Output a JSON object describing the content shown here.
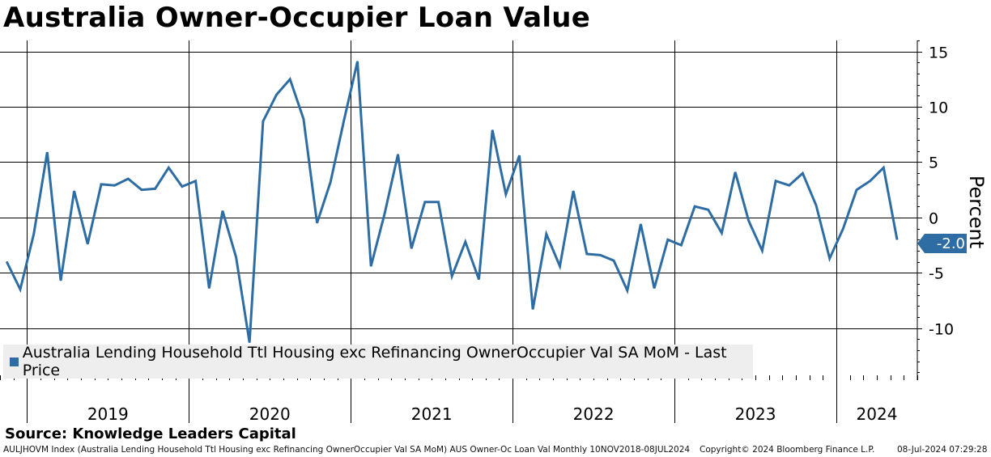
{
  "header": {
    "title": "Australia Owner-Occupier Loan Value"
  },
  "legend": {
    "label": "Australia Lending Household Ttl Housing exc Refinancing OwnerOccupier Val SA MoM - Last Price"
  },
  "source": "Source: Knowledge Leaders Capital",
  "footer": {
    "left": "AULJHOVM Index (Australia Lending Household Ttl Housing exc Refinancing OwnerOccupier Val SA MoM) AUS Owner-Oc Loan Val  Monthly 10NOV2018-08JUL2024",
    "copyright": "Copyright© 2024 Bloomberg Finance L.P.",
    "timestamp": "08-Jul-2024 07:29:28"
  },
  "last_value_label": "-2.0",
  "colors": {
    "series": "#2e6da4",
    "grid": "#000000",
    "legend_bg": "#eeeeee"
  },
  "chart_data": {
    "type": "line",
    "title": "Australia Owner-Occupier Loan Value",
    "ylabel": "Percent",
    "ylim": [
      -14.7,
      16.0
    ],
    "yticks": [
      15,
      10,
      5,
      0,
      -5,
      -10
    ],
    "ytick_labels": [
      "15",
      "10",
      "5",
      "0",
      "-5",
      "-10"
    ],
    "y_axis_side": "right",
    "x_start": "2018-11",
    "x_end": "2024-07",
    "year_labels": [
      "2019",
      "2020",
      "2021",
      "2022",
      "2023",
      "2024"
    ],
    "grid": true,
    "legend_position": "bottom-left",
    "series": [
      {
        "name": "Australia Lending Household Ttl Housing exc Refinancing OwnerOccupier Val SA MoM - Last Price",
        "x": [
          "2018-11",
          "2018-12",
          "2019-01",
          "2019-02",
          "2019-03",
          "2019-04",
          "2019-05",
          "2019-06",
          "2019-07",
          "2019-08",
          "2019-09",
          "2019-10",
          "2019-11",
          "2019-12",
          "2020-01",
          "2020-02",
          "2020-03",
          "2020-04",
          "2020-05",
          "2020-06",
          "2020-07",
          "2020-08",
          "2020-09",
          "2020-10",
          "2020-11",
          "2020-12",
          "2021-01",
          "2021-02",
          "2021-03",
          "2021-04",
          "2021-05",
          "2021-06",
          "2021-07",
          "2021-08",
          "2021-09",
          "2021-10",
          "2021-11",
          "2021-12",
          "2022-01",
          "2022-02",
          "2022-03",
          "2022-04",
          "2022-05",
          "2022-06",
          "2022-07",
          "2022-08",
          "2022-09",
          "2022-10",
          "2022-11",
          "2022-12",
          "2023-01",
          "2023-02",
          "2023-03",
          "2023-04",
          "2023-05",
          "2023-06",
          "2023-07",
          "2023-08",
          "2023-09",
          "2023-10",
          "2023-11",
          "2023-12",
          "2024-01",
          "2024-02",
          "2024-03",
          "2024-04",
          "2024-05"
        ],
        "values": [
          -4.0,
          -6.5,
          -1.5,
          5.9,
          -5.7,
          2.4,
          -2.4,
          3.0,
          2.9,
          3.5,
          2.5,
          2.6,
          4.5,
          2.8,
          3.3,
          -6.4,
          0.6,
          -3.6,
          -11.3,
          8.7,
          11.1,
          12.5,
          8.9,
          -0.5,
          3.2,
          8.8,
          14.1,
          -4.4,
          0.3,
          5.7,
          -2.8,
          1.4,
          1.4,
          -5.3,
          -2.2,
          -5.6,
          7.9,
          2.1,
          5.6,
          -8.3,
          -1.5,
          -4.4,
          2.4,
          -3.3,
          -3.4,
          -3.9,
          -6.6,
          -0.6,
          -6.4,
          -2.0,
          -2.5,
          1.0,
          0.7,
          -1.4,
          4.1,
          -0.3,
          -3.0,
          3.3,
          2.9,
          4.0,
          1.1,
          -3.7,
          -1.0,
          2.5,
          3.3,
          4.5,
          -2.0
        ]
      }
    ]
  }
}
